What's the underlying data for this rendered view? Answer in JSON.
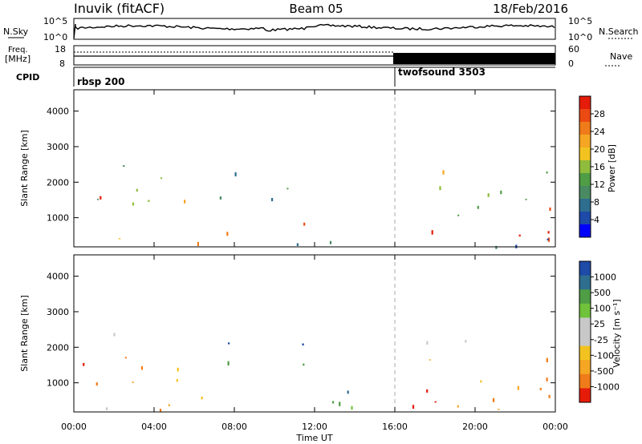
{
  "header": {
    "station": "Inuvik (fitACF)",
    "beam": "Beam 05",
    "date": "18/Feb/2016"
  },
  "status_panels": {
    "noise": {
      "left_label": "N.Sky",
      "left_ticks": [
        "10^5",
        "10^0"
      ],
      "right_label": "N.Search",
      "right_ticks": [
        "10^5",
        "10^0"
      ]
    },
    "freq": {
      "left_label_line1": "Freq.",
      "left_label_line2": "[MHz]",
      "left_ticks": [
        "18",
        "8"
      ],
      "right_label": "Nave",
      "right_ticks": [
        "60",
        "0"
      ]
    },
    "cpid": {
      "label": "CPID",
      "segments": [
        {
          "name": "rbsp 200",
          "start_hour": 0
        },
        {
          "name": "twofsound 3503",
          "start_hour": 16
        }
      ]
    }
  },
  "chart_data": [
    {
      "type": "heatmap",
      "title": "",
      "xlabel": "Time UT",
      "ylabel": "Slant Range [km]",
      "x_ticks": [
        "00:00",
        "04:00",
        "08:00",
        "12:00",
        "16:00",
        "20:00",
        "00:00"
      ],
      "x_hours": [
        0,
        4,
        8,
        12,
        16,
        20,
        24
      ],
      "y_ticks": [
        1000,
        2000,
        3000,
        4000
      ],
      "ylim": [
        180,
        4600
      ],
      "colorbar": {
        "label": "Power [dB]",
        "ticks": [
          "28",
          "24",
          "20",
          "16",
          "12",
          "8",
          "4"
        ],
        "min": 0,
        "max": 32
      },
      "colors": [
        "#0000ff",
        "#1e4aa8",
        "#2e6e8e",
        "#4a8a62",
        "#4f9d45",
        "#8fbc3d",
        "#f2c320",
        "#f5a623",
        "#f07b1a",
        "#eb4a12",
        "#e61c0a"
      ],
      "clusters": [
        {
          "h0": 0.3,
          "h1": 1.5,
          "r0": 600,
          "r1": 1700,
          "level": 30
        },
        {
          "h0": 1.0,
          "h1": 3.0,
          "r0": 1400,
          "r1": 2600,
          "level": 13
        },
        {
          "h0": 2.5,
          "h1": 5.5,
          "r0": 1000,
          "r1": 2200,
          "level": 20
        },
        {
          "h0": 6.0,
          "h1": 8.5,
          "r0": 1500,
          "r1": 2300,
          "level": 11
        },
        {
          "h0": 9.5,
          "h1": 11.5,
          "r0": 1500,
          "r1": 2200,
          "level": 9
        },
        {
          "h0": 1.0,
          "h1": 4.0,
          "r0": 300,
          "r1": 700,
          "level": 24
        },
        {
          "h0": 4.5,
          "h1": 8.5,
          "r0": 280,
          "r1": 700,
          "level": 27
        },
        {
          "h0": 10.0,
          "h1": 11.5,
          "r0": 300,
          "r1": 1000,
          "level": 26
        },
        {
          "h0": 8.5,
          "h1": 16.0,
          "r0": 200,
          "r1": 400,
          "level": 8
        },
        {
          "h0": 16.0,
          "h1": 18.5,
          "r0": 250,
          "r1": 700,
          "level": 28
        },
        {
          "h0": 17.5,
          "h1": 19.5,
          "r0": 1800,
          "r1": 2900,
          "level": 18
        },
        {
          "h0": 18.5,
          "h1": 21.5,
          "r0": 800,
          "r1": 2000,
          "level": 10
        },
        {
          "h0": 21.0,
          "h1": 24.0,
          "r0": 300,
          "r1": 1500,
          "level": 30
        },
        {
          "h0": 22.5,
          "h1": 24.0,
          "r0": 1400,
          "r1": 2400,
          "level": 15
        },
        {
          "h0": 16.0,
          "h1": 24.0,
          "r0": 200,
          "r1": 500,
          "level": 6
        }
      ]
    },
    {
      "type": "heatmap",
      "title": "",
      "xlabel": "Time UT",
      "ylabel": "Slant Range [km]",
      "x_ticks": [
        "00:00",
        "04:00",
        "08:00",
        "12:00",
        "16:00",
        "20:00",
        "00:00"
      ],
      "x_hours": [
        0,
        4,
        8,
        12,
        16,
        20,
        24
      ],
      "y_ticks": [
        1000,
        2000,
        3000,
        4000
      ],
      "ylim": [
        180,
        4600
      ],
      "colorbar": {
        "label": "Velocity [m s⁻¹]",
        "ticks": [
          "1000",
          "500",
          "100",
          "25",
          "-25",
          "-100",
          "-500",
          "-1000"
        ]
      },
      "colors": [
        "#e61c0a",
        "#f07b1a",
        "#f5a623",
        "#f2c320",
        "#c8c8c8",
        "#c8c8c8",
        "#6fc23a",
        "#4f9d45",
        "#2e6e8e",
        "#1e4aa8"
      ],
      "clusters": [
        {
          "h0": 0.3,
          "h1": 3.5,
          "r0": 700,
          "r1": 2100,
          "level": 1
        },
        {
          "h0": 0.8,
          "h1": 2.5,
          "r0": 2200,
          "r1": 2700,
          "level": 4
        },
        {
          "h0": 3.5,
          "h1": 5.5,
          "r0": 1000,
          "r1": 2000,
          "level": 2
        },
        {
          "h0": 5.5,
          "h1": 8.5,
          "r0": 1500,
          "r1": 2200,
          "level": 8
        },
        {
          "h0": 9.5,
          "h1": 11.5,
          "r0": 1500,
          "r1": 2200,
          "level": 8
        },
        {
          "h0": 1.0,
          "h1": 4.0,
          "r0": 300,
          "r1": 700,
          "level": 4
        },
        {
          "h0": 4.0,
          "h1": 9.0,
          "r0": 250,
          "r1": 700,
          "level": 2
        },
        {
          "h0": 9.0,
          "h1": 15.0,
          "r0": 250,
          "r1": 800,
          "level": 7
        },
        {
          "h0": 16.5,
          "h1": 19.5,
          "r0": 300,
          "r1": 1800,
          "level": 1
        },
        {
          "h0": 17.5,
          "h1": 19.5,
          "r0": 2000,
          "r1": 3000,
          "level": 4
        },
        {
          "h0": 19.5,
          "h1": 22.5,
          "r0": 300,
          "r1": 1200,
          "level": 2
        },
        {
          "h0": 21.5,
          "h1": 24.0,
          "r0": 400,
          "r1": 2000,
          "level": 0
        },
        {
          "h0": 21.0,
          "h1": 24.0,
          "r0": 200,
          "r1": 500,
          "level": 3
        }
      ]
    }
  ]
}
